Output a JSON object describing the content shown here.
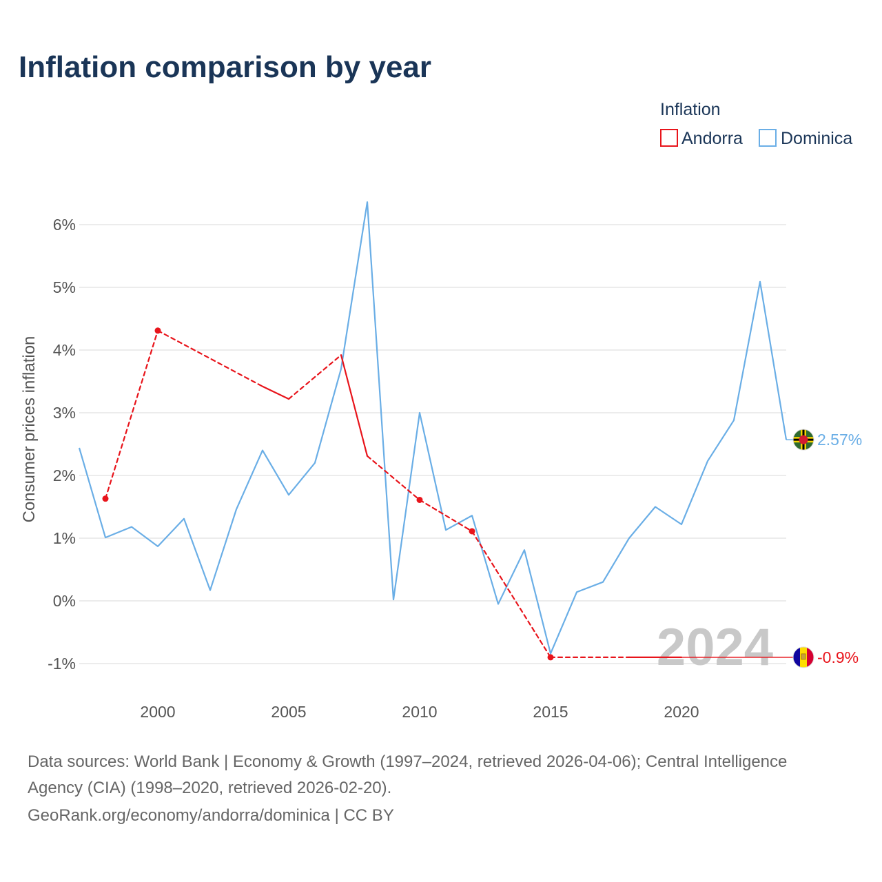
{
  "chart_data": {
    "type": "line",
    "title": "Inflation comparison by year",
    "ylabel": "Consumer prices inflation",
    "xlabel": "",
    "legend_title": "Inflation",
    "legend_position": "top-right",
    "xlim": [
      1997,
      2024
    ],
    "ylim": [
      -1.5,
      6.5
    ],
    "x_ticks": [
      2000,
      2005,
      2010,
      2015,
      2020
    ],
    "y_ticks": [
      -1,
      0,
      1,
      2,
      3,
      4,
      5,
      6
    ],
    "y_tick_labels": [
      "-1%",
      "0%",
      "1%",
      "2%",
      "3%",
      "4%",
      "5%",
      "6%"
    ],
    "current_year_label": "2024",
    "series": [
      {
        "name": "Andorra",
        "color": "#e8141b",
        "flag_icon": "andorra-flag-icon",
        "end_label": "-0.9%",
        "end_value": -0.9,
        "points": [
          {
            "x": 1998,
            "y": 1.63
          },
          {
            "x": 2000,
            "y": 4.31
          },
          {
            "x": 2004,
            "y": 3.42
          },
          {
            "x": 2005,
            "y": 3.22
          },
          {
            "x": 2007,
            "y": 3.92
          },
          {
            "x": 2008,
            "y": 2.31
          },
          {
            "x": 2010,
            "y": 1.61
          },
          {
            "x": 2012,
            "y": 1.11
          },
          {
            "x": 2015,
            "y": -0.9
          },
          {
            "x": 2018,
            "y": -0.9
          },
          {
            "x": 2020,
            "y": -0.9
          }
        ],
        "markers": [
          1998,
          2000,
          2010,
          2012,
          2015
        ],
        "solid_segments": [
          [
            2004,
            2005
          ],
          [
            2007,
            2008
          ],
          [
            2018,
            2020
          ]
        ]
      },
      {
        "name": "Dominica",
        "color": "#6aaee6",
        "flag_icon": "dominica-flag-icon",
        "end_label": "2.57%",
        "end_value": 2.57,
        "points": [
          {
            "x": 1997,
            "y": 2.44
          },
          {
            "x": 1998,
            "y": 1.01
          },
          {
            "x": 1999,
            "y": 1.18
          },
          {
            "x": 2000,
            "y": 0.87
          },
          {
            "x": 2001,
            "y": 1.31
          },
          {
            "x": 2002,
            "y": 0.17
          },
          {
            "x": 2003,
            "y": 1.46
          },
          {
            "x": 2004,
            "y": 2.4
          },
          {
            "x": 2005,
            "y": 1.69
          },
          {
            "x": 2006,
            "y": 2.2
          },
          {
            "x": 2007,
            "y": 3.7
          },
          {
            "x": 2008,
            "y": 6.36
          },
          {
            "x": 2009,
            "y": 0.02
          },
          {
            "x": 2010,
            "y": 3.0
          },
          {
            "x": 2011,
            "y": 1.13
          },
          {
            "x": 2012,
            "y": 1.36
          },
          {
            "x": 2013,
            "y": -0.05
          },
          {
            "x": 2014,
            "y": 0.81
          },
          {
            "x": 2015,
            "y": -0.84
          },
          {
            "x": 2016,
            "y": 0.14
          },
          {
            "x": 2017,
            "y": 0.3
          },
          {
            "x": 2018,
            "y": 1.0
          },
          {
            "x": 2019,
            "y": 1.5
          },
          {
            "x": 2020,
            "y": 1.22
          },
          {
            "x": 2021,
            "y": 2.23
          },
          {
            "x": 2022,
            "y": 2.88
          },
          {
            "x": 2023,
            "y": 5.09
          },
          {
            "x": 2024,
            "y": 2.57
          }
        ]
      }
    ]
  },
  "source": {
    "line1": "Data sources: World Bank | Economy & Growth (1997–2024, retrieved 2026-04-06); Central Intelligence",
    "line2": "Agency (CIA) (1998–2020, retrieved 2026-02-20).",
    "line3": "GeoRank.org/economy/andorra/dominica | CC BY"
  }
}
